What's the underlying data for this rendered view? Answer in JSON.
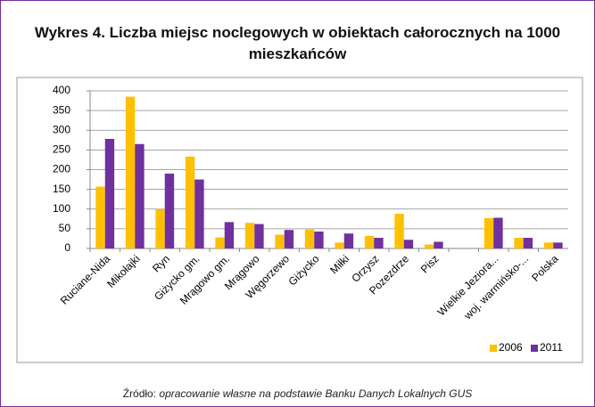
{
  "chart_data": {
    "type": "bar",
    "title": "Wykres 4. Liczba miejsc noclegowych w obiektach całorocznych na 1000 mieszkańców",
    "categories": [
      "Ruciane-Nida",
      "Mikołajki",
      "Ryn",
      "Giżycko gm.",
      "Mrągowo gm.",
      "Mrągowo",
      "Węgorzewo",
      "Giżycko",
      "Miłki",
      "Orzysz",
      "Pozezdrze",
      "Pisz",
      null,
      "Wielkie Jeziora...",
      "woj. warmińsko-...",
      "Polska"
    ],
    "series": [
      {
        "name": "2006",
        "color": "#ffc000",
        "values": [
          157,
          385,
          100,
          233,
          28,
          65,
          35,
          48,
          15,
          32,
          88,
          10,
          null,
          77,
          27,
          15
        ]
      },
      {
        "name": "2011",
        "color": "#7030a0",
        "values": [
          278,
          265,
          190,
          175,
          67,
          62,
          47,
          43,
          38,
          27,
          22,
          17,
          null,
          78,
          27,
          15
        ]
      }
    ],
    "ylim": [
      0,
      400
    ],
    "yticks": [
      0,
      50,
      100,
      150,
      200,
      250,
      300,
      350,
      400
    ],
    "grid": true,
    "legend": "bottom-right",
    "source_label": "Źródło:",
    "source": "opracowanie własne na podstawie Banku Danych Lokalnych GUS"
  }
}
